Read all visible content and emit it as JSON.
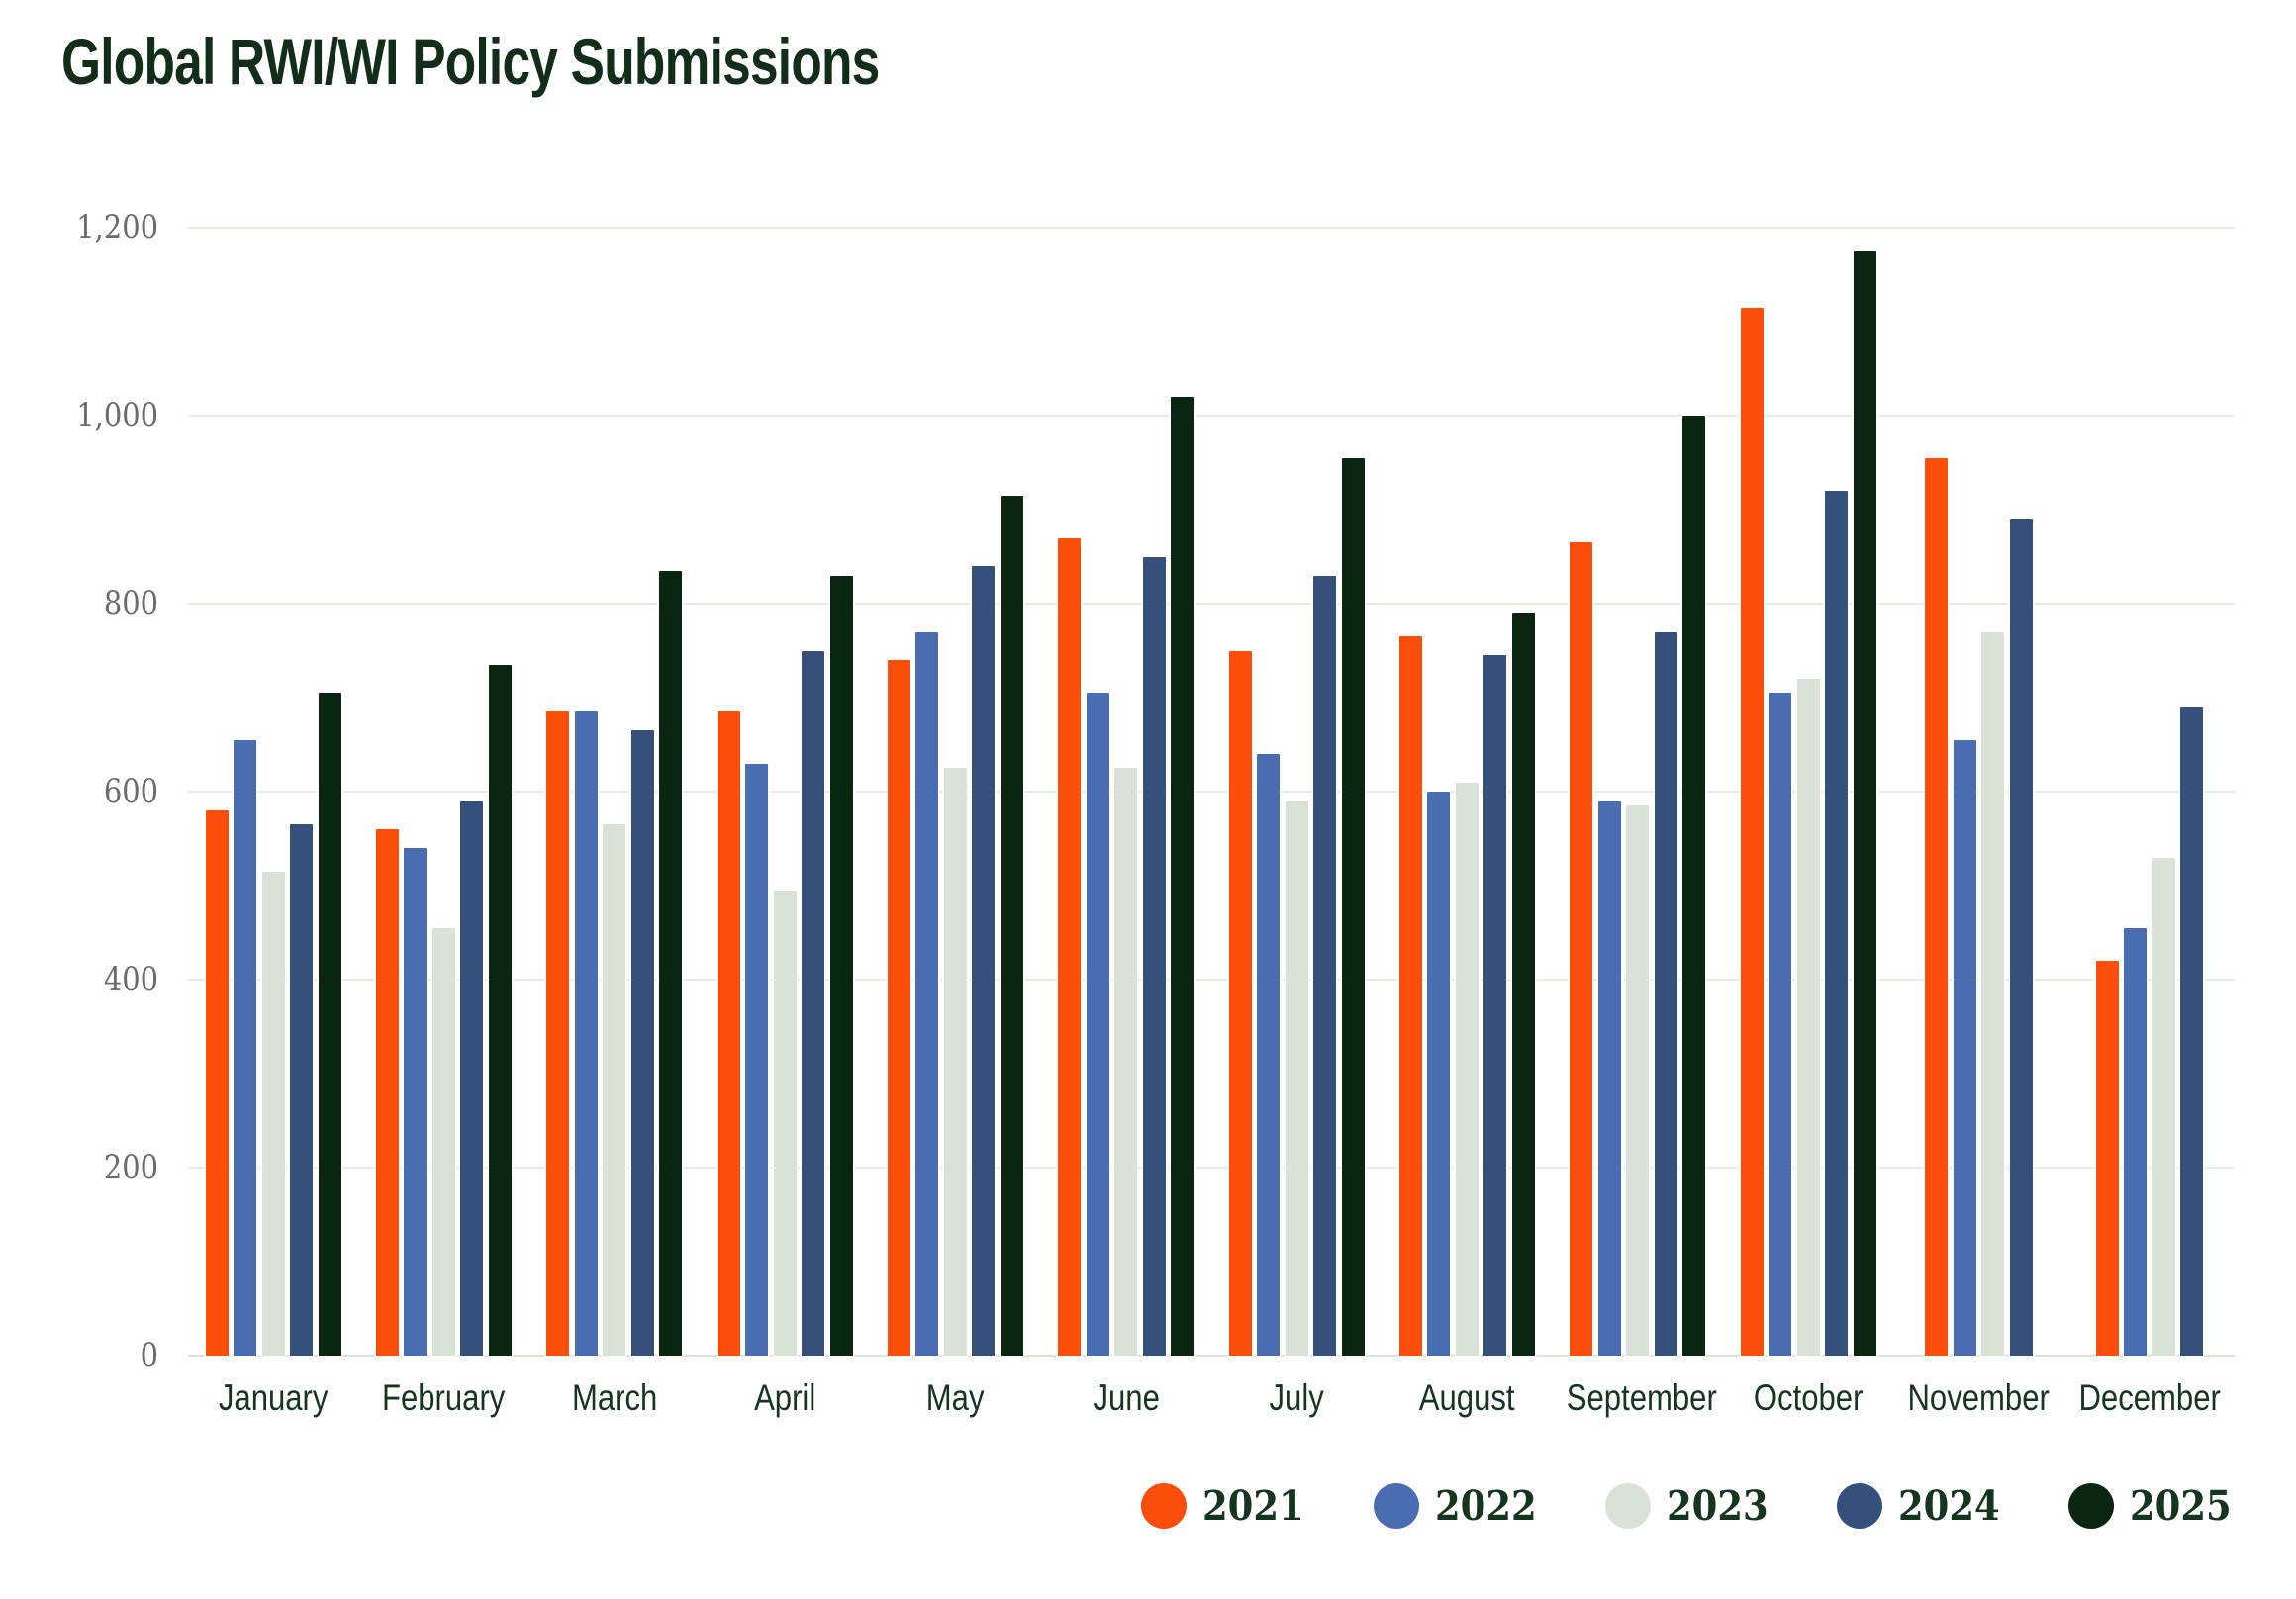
{
  "page": {
    "background": "#ffffff"
  },
  "style_colors": {
    "title_text": "#122D19",
    "month_label_text": "#16351F",
    "y_tick_text": "#6B6B6B",
    "gridline": "#E7ECE5",
    "baseline": "#DCE3DA",
    "legend_text": "#16351F"
  },
  "chart_data": {
    "type": "bar",
    "title": "Global RWI/WI Policy Submissions",
    "categories": [
      "January",
      "February",
      "March",
      "April",
      "May",
      "June",
      "July",
      "August",
      "September",
      "October",
      "November",
      "December"
    ],
    "series": [
      {
        "name": "2021",
        "color": "#FB4E0A",
        "values": [
          580,
          560,
          685,
          685,
          740,
          870,
          750,
          765,
          865,
          1115,
          955,
          420
        ]
      },
      {
        "name": "2022",
        "color": "#4A6DB2",
        "values": [
          655,
          540,
          685,
          630,
          770,
          705,
          640,
          600,
          590,
          705,
          655,
          455
        ]
      },
      {
        "name": "2023",
        "color": "#DAE2D7",
        "values": [
          515,
          455,
          565,
          495,
          625,
          625,
          590,
          610,
          585,
          720,
          770,
          530
        ]
      },
      {
        "name": "2024",
        "color": "#35507A",
        "values": [
          565,
          590,
          665,
          750,
          840,
          850,
          830,
          745,
          770,
          920,
          890,
          690
        ]
      },
      {
        "name": "2025",
        "color": "#0A2510",
        "values": [
          705,
          735,
          835,
          830,
          915,
          1020,
          955,
          790,
          1000,
          1175,
          null,
          null
        ]
      }
    ],
    "xlabel": "",
    "ylabel": "",
    "ylim": [
      0,
      1200
    ],
    "y_ticks": [
      {
        "value": 0,
        "label": "0"
      },
      {
        "value": 200,
        "label": "200"
      },
      {
        "value": 400,
        "label": "400"
      },
      {
        "value": 600,
        "label": "600"
      },
      {
        "value": 800,
        "label": "800"
      },
      {
        "value": 1000,
        "label": "1,000"
      },
      {
        "value": 1200,
        "label": "1,200"
      }
    ],
    "grid": true,
    "legend_position": "bottom-right"
  }
}
